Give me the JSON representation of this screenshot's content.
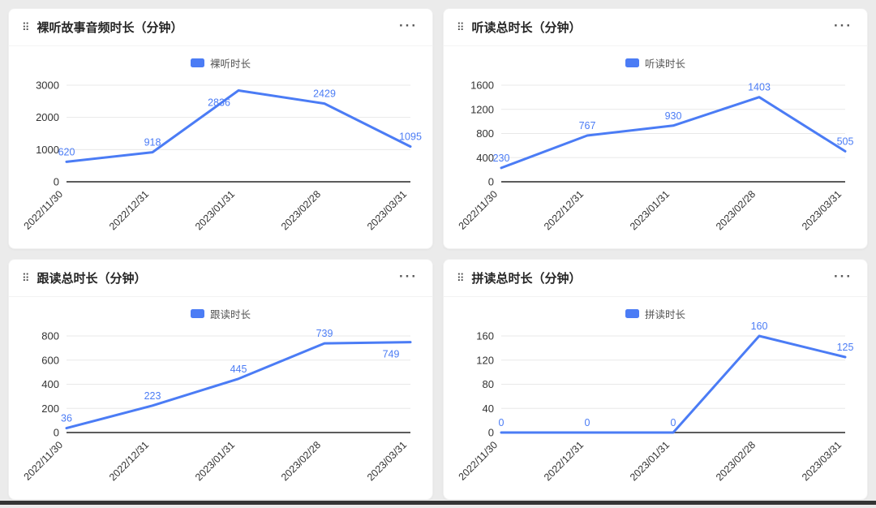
{
  "colors": {
    "line": "#4b7cf5",
    "label": "#4b7cf5",
    "axis": "#5c5c5c",
    "grid": "#e8e8e8",
    "tick_text": "#333333",
    "page_bg": "#ebebeb",
    "card_bg": "#ffffff"
  },
  "ui": {
    "drag_icon": "⠿",
    "menu_icon": "···"
  },
  "chart_data": [
    {
      "type": "line",
      "title": "裸听故事音频时长（分钟）",
      "legend": "裸听时长",
      "categories": [
        "2022/11/30",
        "2022/12/31",
        "2023/01/31",
        "2023/02/28",
        "2023/03/31"
      ],
      "values": [
        620,
        918,
        2836,
        2429,
        1095
      ],
      "ylim": [
        0,
        3000
      ],
      "yticks": [
        0,
        1000,
        2000,
        3000
      ],
      "label_positions": [
        "above",
        "above",
        "below",
        "above",
        "above"
      ],
      "legend_position": "top-center",
      "grid": true
    },
    {
      "type": "line",
      "title": "听读总时长（分钟）",
      "legend": "听读时长",
      "categories": [
        "2022/11/30",
        "2022/12/31",
        "2023/01/31",
        "2023/02/28",
        "2023/03/31"
      ],
      "values": [
        230,
        767,
        930,
        1403,
        505
      ],
      "ylim": [
        0,
        1600
      ],
      "yticks": [
        0,
        400,
        800,
        1200,
        1600
      ],
      "label_positions": [
        "above",
        "above",
        "above",
        "above",
        "above"
      ],
      "legend_position": "top-center",
      "grid": true
    },
    {
      "type": "line",
      "title": "跟读总时长（分钟）",
      "legend": "跟读时长",
      "categories": [
        "2022/11/30",
        "2022/12/31",
        "2023/01/31",
        "2023/02/28",
        "2023/03/31"
      ],
      "values": [
        36,
        223,
        445,
        739,
        749
      ],
      "ylim": [
        0,
        800
      ],
      "yticks": [
        0,
        200,
        400,
        600,
        800
      ],
      "label_positions": [
        "above",
        "above",
        "above",
        "above",
        "below"
      ],
      "legend_position": "top-center",
      "grid": true
    },
    {
      "type": "line",
      "title": "拼读总时长（分钟）",
      "legend": "拼读时长",
      "categories": [
        "2022/11/30",
        "2022/12/31",
        "2023/01/31",
        "2023/02/28",
        "2023/03/31"
      ],
      "values": [
        0,
        0,
        0,
        160,
        125
      ],
      "ylim": [
        0,
        160
      ],
      "yticks": [
        0,
        40,
        80,
        120,
        160
      ],
      "label_positions": [
        "above",
        "above",
        "above",
        "above",
        "above"
      ],
      "legend_position": "top-center",
      "grid": true
    }
  ]
}
